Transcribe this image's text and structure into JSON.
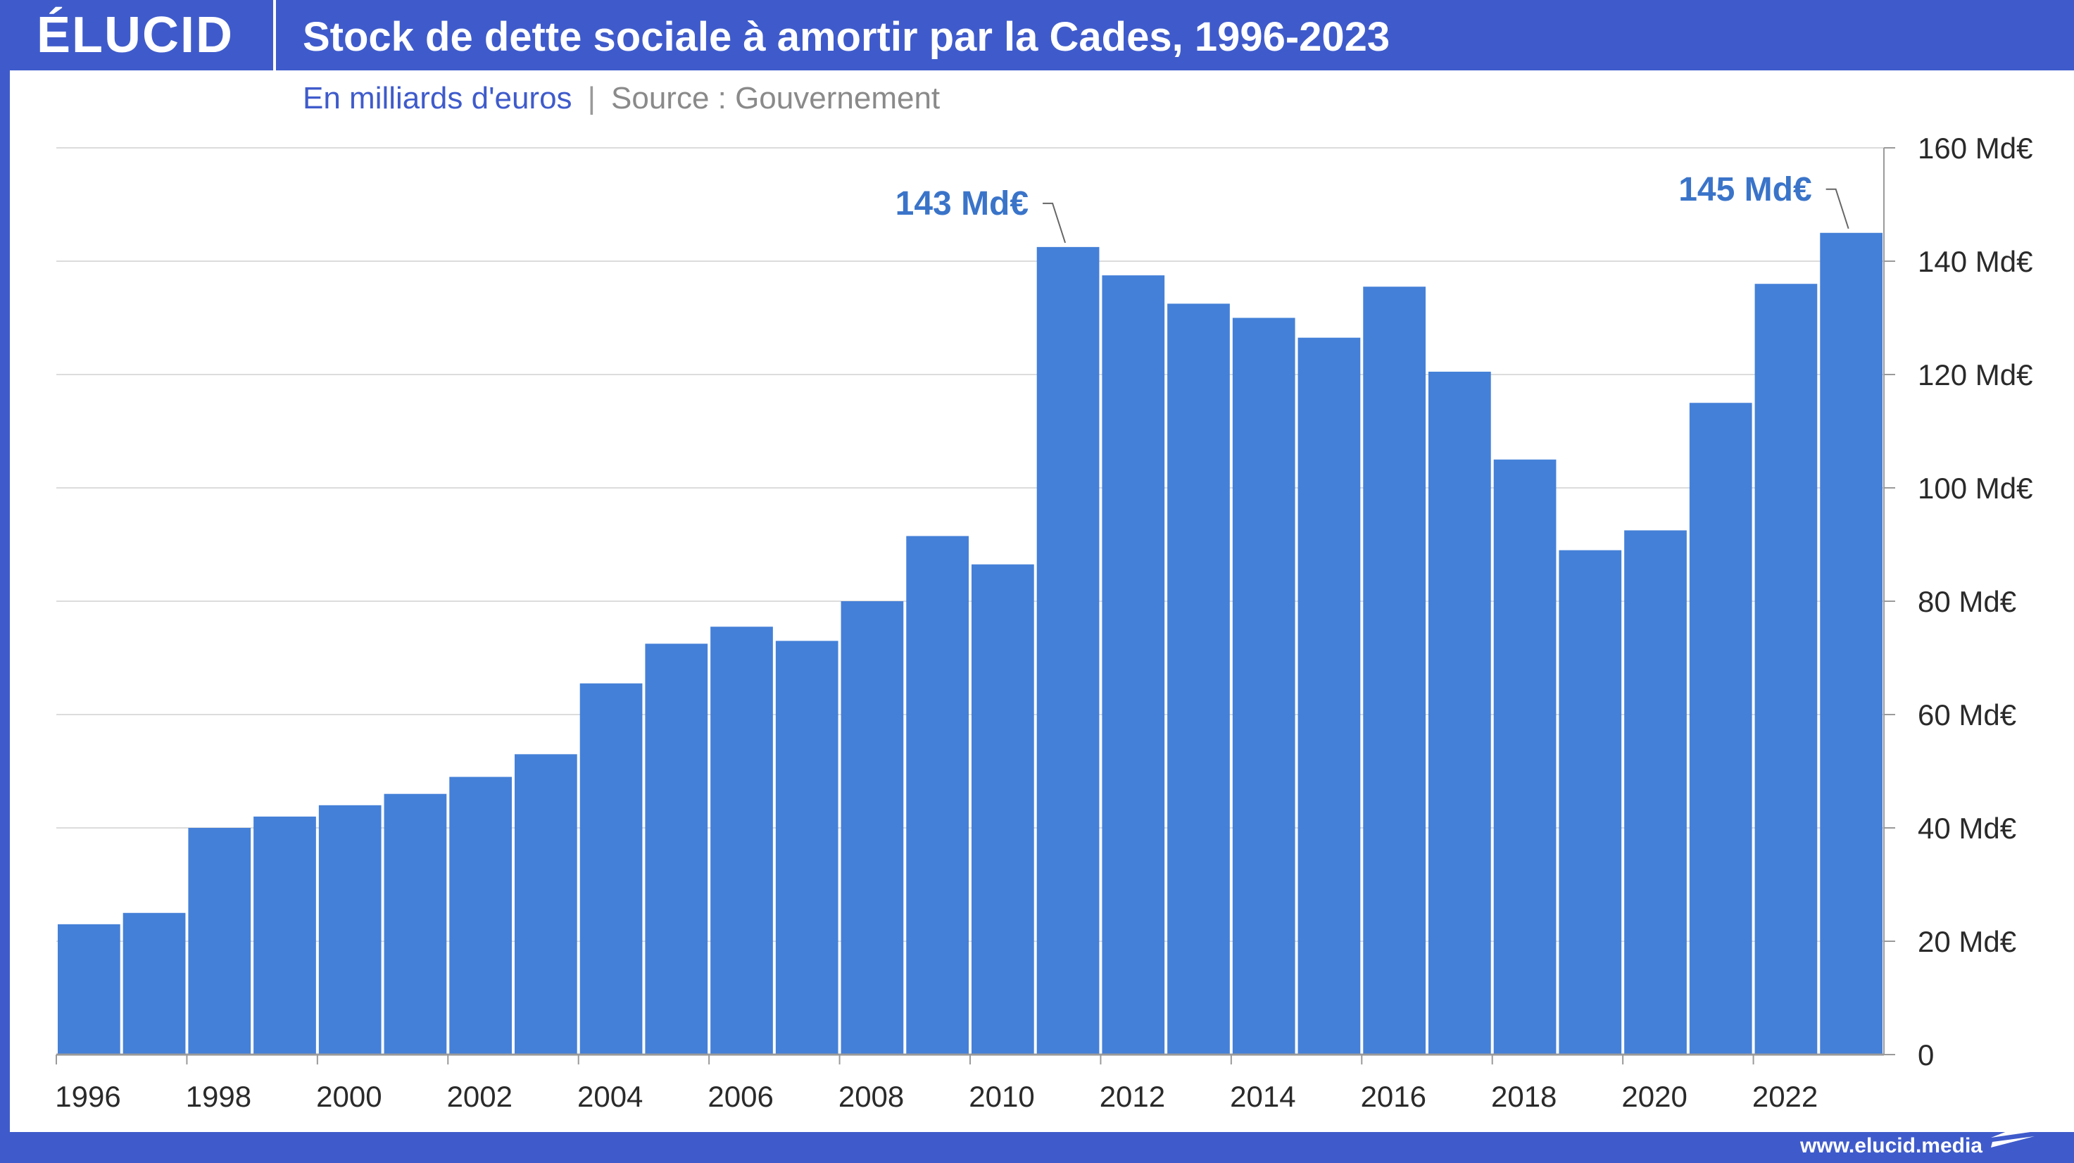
{
  "brand": {
    "logo_text": "ÉLUCID",
    "website": "www.elucid.media"
  },
  "header": {
    "title": "Stock de dette sociale à amortir par la Cades, 1996-2023",
    "unit_text": "En milliards d'euros",
    "separator": "|",
    "source_text": "Source : Gouvernement"
  },
  "colors": {
    "bar": "#4480d8",
    "brand": "#3f5bcb",
    "annotation": "#3a74c9"
  },
  "chart_data": {
    "type": "bar",
    "categories": [
      "1996",
      "1997",
      "1998",
      "1999",
      "2000",
      "2001",
      "2002",
      "2003",
      "2004",
      "2005",
      "2006",
      "2007",
      "2008",
      "2009",
      "2010",
      "2011",
      "2012",
      "2013",
      "2014",
      "2015",
      "2016",
      "2017",
      "2018",
      "2019",
      "2020",
      "2021",
      "2022",
      "2023"
    ],
    "values": [
      23,
      25,
      40,
      42,
      44,
      46,
      49,
      53,
      65.5,
      72.5,
      75.5,
      73,
      80,
      91.5,
      86.5,
      142.5,
      137.5,
      132.5,
      130,
      126.5,
      135.5,
      120.5,
      105,
      89,
      92.5,
      115,
      136,
      145
    ],
    "x_tick_labels": [
      "1996",
      "1998",
      "2000",
      "2002",
      "2004",
      "2006",
      "2008",
      "2010",
      "2012",
      "2014",
      "2016",
      "2018",
      "2020",
      "2022"
    ],
    "y_ticks": [
      0,
      20,
      40,
      60,
      80,
      100,
      120,
      140,
      160
    ],
    "y_tick_labels": [
      "0",
      "20 Md€",
      "40 Md€",
      "60 Md€",
      "80 Md€",
      "100 Md€",
      "120 Md€",
      "140 Md€",
      "160 Md€"
    ],
    "ylim": [
      0,
      160
    ],
    "grid": true,
    "y_axis_position": "right",
    "annotations": [
      {
        "category": "2011",
        "text": "143 Md€"
      },
      {
        "category": "2023",
        "text": "145 Md€"
      }
    ]
  }
}
